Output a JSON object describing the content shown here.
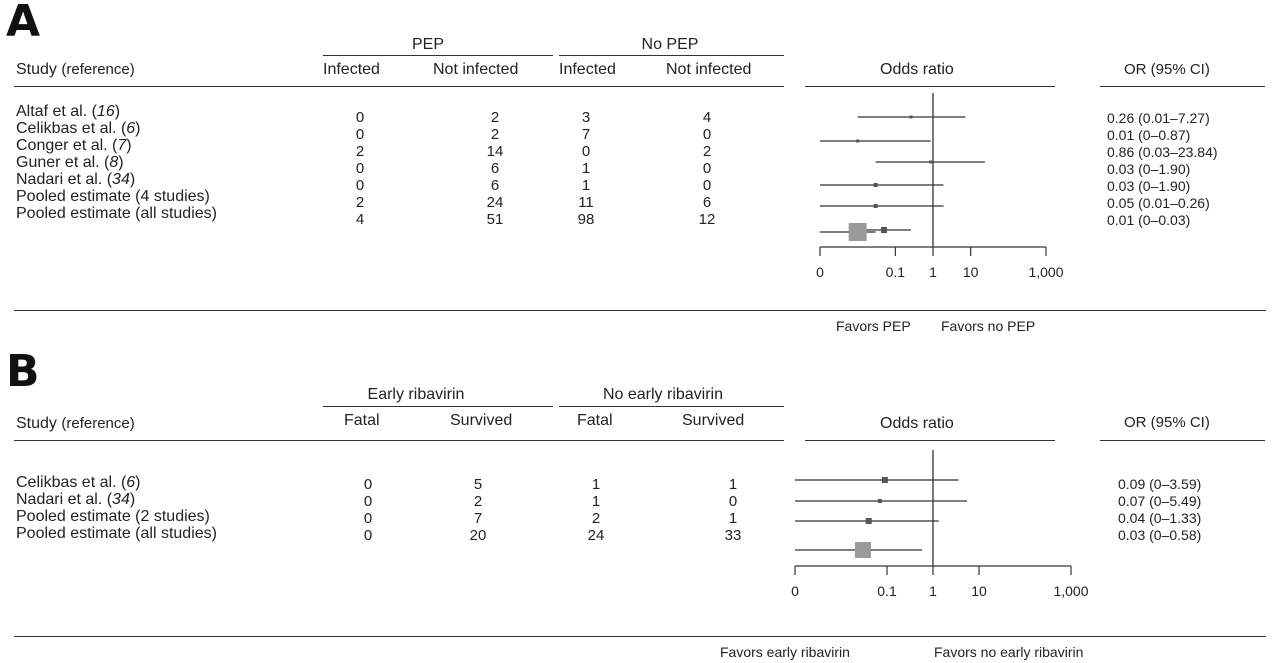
{
  "panels": [
    {
      "letter": "A",
      "group_headers": [
        "PEP",
        "No PEP"
      ],
      "col_headers": [
        "Study",
        "(reference)",
        "Infected",
        "Not infected",
        "Infected",
        "Not infected",
        "Odds ratio",
        "OR (95%  CI)"
      ],
      "rows": [
        {
          "pre": "Altaf et al. (",
          "ref": "16",
          "post": ")",
          "cells": [
            "0",
            "2",
            "3",
            "4"
          ],
          "or_text": "0.26 (0.01–7.27)"
        },
        {
          "pre": "Celikbas et al. (",
          "ref": "6",
          "post": ")",
          "cells": [
            "0",
            "2",
            "7",
            "0"
          ],
          "or_text": "0.01 (0–0.87)"
        },
        {
          "pre": "Conger et al. (",
          "ref": "7",
          "post": ")",
          "cells": [
            "2",
            "14",
            "0",
            "2"
          ],
          "or_text": "0.86 (0.03–23.84)"
        },
        {
          "pre": "Guner et al. (",
          "ref": "8",
          "post": ")",
          "cells": [
            "0",
            "6",
            "1",
            "0"
          ],
          "or_text": "0.03 (0–1.90)"
        },
        {
          "pre": "Nadari et al. (",
          "ref": "34",
          "post": ")",
          "cells": [
            "0",
            "6",
            "1",
            "0"
          ],
          "or_text": "0.03 (0–1.90)"
        },
        {
          "pre": "Pooled estimate (4 studies)",
          "ref": "",
          "post": "",
          "cells": [
            "2",
            "24",
            "11",
            "6"
          ],
          "or_text": "0.05 (0.01–0.26)"
        },
        {
          "pre": "Pooled estimate (all studies)",
          "ref": "",
          "post": "",
          "cells": [
            "4",
            "51",
            "98",
            "12"
          ],
          "or_text": "0.01 (0–0.03)"
        }
      ],
      "favors": [
        "Favors PEP",
        "Favors no PEP"
      ]
    },
    {
      "letter": "B",
      "group_headers": [
        "Early  ribavirin",
        "No early ribavirin"
      ],
      "col_headers": [
        "Study",
        "(reference)",
        "Fatal",
        "Survived",
        "Fatal",
        "Survived",
        "Odds ratio",
        "OR (95%  CI)"
      ],
      "rows": [
        {
          "pre": "Celikbas et al. (",
          "ref": "6",
          "post": ")",
          "cells": [
            "0",
            "5",
            "1",
            "1"
          ],
          "or_text": "0.09 (0–3.59)"
        },
        {
          "pre": "Nadari et al. (",
          "ref": "34",
          "post": ")",
          "cells": [
            "0",
            "2",
            "1",
            "0"
          ],
          "or_text": "0.07 (0–5.49)"
        },
        {
          "pre": "Pooled estimate (2 studies)",
          "ref": "",
          "post": "",
          "cells": [
            "0",
            "7",
            "2",
            "1"
          ],
          "or_text": "0.04 (0–1.33)"
        },
        {
          "pre": "Pooled estimate (all studies)",
          "ref": "",
          "post": "",
          "cells": [
            "0",
            "20",
            "24",
            "33"
          ],
          "or_text": "0.03 (0–0.58)"
        }
      ],
      "favors": [
        "Favors early ribavirin",
        "Favors no early ribavirin"
      ]
    }
  ],
  "colors": {
    "text": "#222222",
    "line": "#333333",
    "pooled_box": "#9a9a9a"
  },
  "chart_data": [
    {
      "type": "forest",
      "title": "",
      "xlabel": "Odds ratio",
      "scale": "log",
      "x_ticks": [
        "0",
        "0.1",
        "1",
        "10",
        "1,000"
      ],
      "x_tick_values": [
        0.001,
        0.1,
        1,
        10,
        1000
      ],
      "reference_line": 1,
      "studies": [
        "Altaf et al. (16)",
        "Celikbas et al. (6)",
        "Conger et al. (7)",
        "Guner et al. (8)",
        "Nadari et al. (34)",
        "Pooled estimate (4 studies)",
        "Pooled estimate (all studies)"
      ],
      "odds_ratio": [
        0.26,
        0.01,
        0.86,
        0.03,
        0.03,
        0.05,
        0.01
      ],
      "ci_low": [
        0.01,
        0,
        0.03,
        0,
        0,
        0.01,
        0
      ],
      "ci_high": [
        7.27,
        0.87,
        23.84,
        1.9,
        1.9,
        0.26,
        0.03
      ]
    },
    {
      "type": "forest",
      "title": "",
      "xlabel": "Odds ratio",
      "scale": "log",
      "x_ticks": [
        "0",
        "0.1",
        "1",
        "10",
        "1,000"
      ],
      "x_tick_values": [
        0.001,
        0.1,
        1,
        10,
        1000
      ],
      "reference_line": 1,
      "studies": [
        "Celikbas et al. (6)",
        "Nadari et al. (34)",
        "Pooled estimate (2 studies)",
        "Pooled estimate (all studies)"
      ],
      "odds_ratio": [
        0.09,
        0.07,
        0.04,
        0.03
      ],
      "ci_low": [
        0,
        0,
        0,
        0
      ],
      "ci_high": [
        3.59,
        5.49,
        1.33,
        0.58
      ]
    }
  ]
}
